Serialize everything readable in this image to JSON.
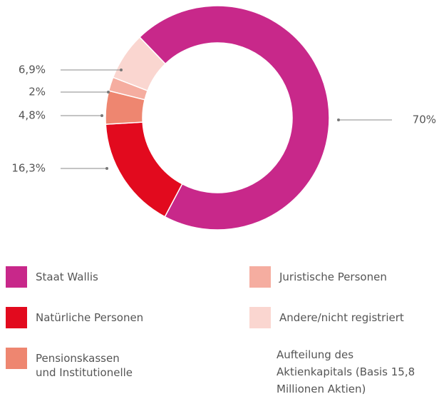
{
  "chart_data": {
    "type": "donut",
    "categories": [
      "Staat Wallis",
      "Natürliche Personen",
      "Pensionskassen und Institutionelle",
      "Juristische Personen",
      "Andere/nicht registriert"
    ],
    "values": [
      70,
      16.3,
      4.8,
      2,
      6.9
    ],
    "value_labels": [
      "70%",
      "16,3%",
      "4,8%",
      "2%",
      "6,9%"
    ],
    "colors": [
      "#c8288a",
      "#e20a1e",
      "#ee8670",
      "#f5ada0",
      "#fad6d0"
    ],
    "note": "Aufteilung des Aktienkapitals (Basis 15,8 Millionen Aktien)"
  }
}
